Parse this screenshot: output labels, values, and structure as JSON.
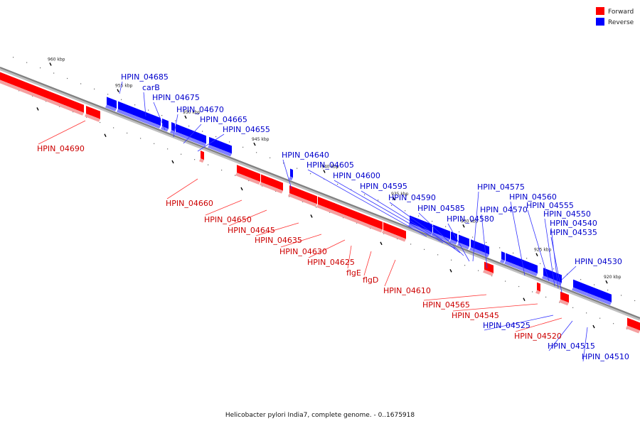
{
  "legend": {
    "forward_label": "Forward",
    "reverse_label": "Reverse",
    "forward_color": "#ff0000",
    "reverse_color": "#0000ff"
  },
  "caption": "Helicobacter pylori India7, complete genome. - 0..1675918",
  "axis_ticks": [
    "960 kbp",
    "955 kbp",
    "950 kbp",
    "945 kbp",
    "940 kbp",
    "935 kbp",
    "930 kbp",
    "925 kbp",
    "920 kbp"
  ],
  "colors": {
    "backbone": "#808080",
    "forward_label": "#cc0000",
    "reverse_label": "#0000cc"
  },
  "genes": [
    {
      "name": "HPIN_04690",
      "strand": "forward"
    },
    {
      "name": "HPIN_04685",
      "strand": "reverse"
    },
    {
      "name": "carB",
      "strand": "reverse"
    },
    {
      "name": "HPIN_04675",
      "strand": "reverse"
    },
    {
      "name": "HPIN_04670",
      "strand": "reverse"
    },
    {
      "name": "HPIN_04665",
      "strand": "reverse"
    },
    {
      "name": "HPIN_04655",
      "strand": "reverse"
    },
    {
      "name": "HPIN_04660",
      "strand": "forward"
    },
    {
      "name": "HPIN_04640",
      "strand": "reverse"
    },
    {
      "name": "HPIN_04650",
      "strand": "forward"
    },
    {
      "name": "HPIN_04645",
      "strand": "forward"
    },
    {
      "name": "HPIN_04635",
      "strand": "forward"
    },
    {
      "name": "HPIN_04630",
      "strand": "forward"
    },
    {
      "name": "HPIN_04625",
      "strand": "forward"
    },
    {
      "name": "flgE",
      "strand": "forward"
    },
    {
      "name": "flgD",
      "strand": "forward"
    },
    {
      "name": "HPIN_04610",
      "strand": "forward"
    },
    {
      "name": "HPIN_04605",
      "strand": "reverse"
    },
    {
      "name": "HPIN_04600",
      "strand": "reverse"
    },
    {
      "name": "HPIN_04595",
      "strand": "reverse"
    },
    {
      "name": "HPIN_04590",
      "strand": "reverse"
    },
    {
      "name": "HPIN_04585",
      "strand": "reverse"
    },
    {
      "name": "HPIN_04580",
      "strand": "reverse"
    },
    {
      "name": "HPIN_04575",
      "strand": "reverse"
    },
    {
      "name": "HPIN_04570",
      "strand": "reverse"
    },
    {
      "name": "HPIN_04560",
      "strand": "reverse"
    },
    {
      "name": "HPIN_04555",
      "strand": "reverse"
    },
    {
      "name": "HPIN_04550",
      "strand": "reverse"
    },
    {
      "name": "HPIN_04540",
      "strand": "reverse"
    },
    {
      "name": "HPIN_04535",
      "strand": "reverse"
    },
    {
      "name": "HPIN_04530",
      "strand": "reverse"
    },
    {
      "name": "HPIN_04565",
      "strand": "forward"
    },
    {
      "name": "HPIN_04545",
      "strand": "forward"
    },
    {
      "name": "HPIN_04525",
      "strand": "reverse"
    },
    {
      "name": "HPIN_04520",
      "strand": "forward"
    },
    {
      "name": "HPIN_04515",
      "strand": "reverse"
    },
    {
      "name": "HPIN_04510",
      "strand": "reverse"
    }
  ]
}
